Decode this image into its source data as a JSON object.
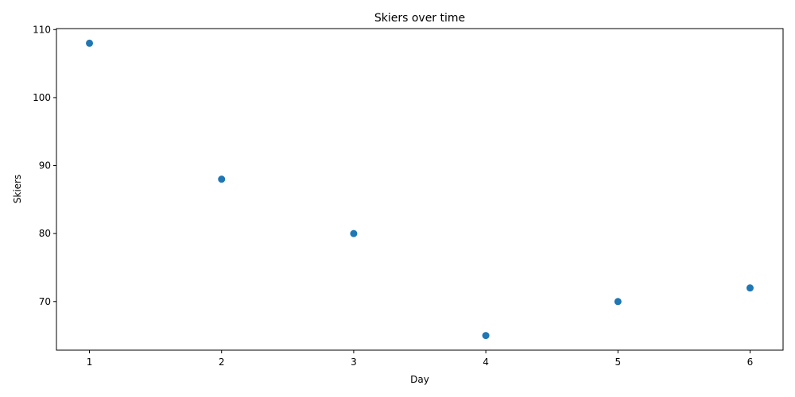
{
  "chart_data": {
    "type": "scatter",
    "title": "Skiers over time",
    "xlabel": "Day",
    "ylabel": "Skiers",
    "x": [
      1,
      2,
      3,
      4,
      5,
      6
    ],
    "y": [
      108,
      88,
      80,
      65,
      70,
      72
    ],
    "xlim": [
      0.75,
      6.25
    ],
    "ylim": [
      62.85,
      110.15
    ],
    "xticks": [
      1,
      2,
      3,
      4,
      5,
      6
    ],
    "yticks": [
      70,
      80,
      90,
      100,
      110
    ],
    "grid": false,
    "marker_color": "#1f77b4"
  }
}
